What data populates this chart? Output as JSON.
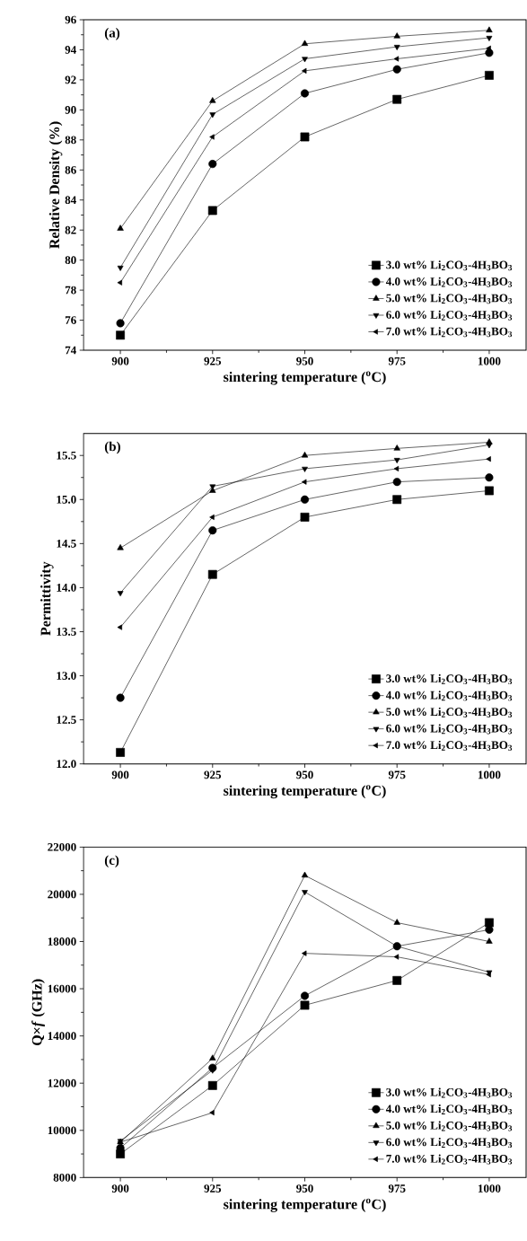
{
  "chart_data": [
    {
      "type": "line",
      "annotations": [
        "(a)"
      ],
      "xlabel": "sintering temperature ($^{o}$C)",
      "ylabel": "Relative Density (%)",
      "x": [
        900,
        925,
        950,
        975,
        1000
      ],
      "xlim": [
        890,
        1010
      ],
      "xticks": [
        900,
        925,
        950,
        975,
        1000
      ],
      "ylim": [
        74,
        96
      ],
      "yticks": [
        74,
        76,
        78,
        80,
        82,
        84,
        86,
        88,
        90,
        92,
        94,
        96
      ],
      "legend": "bottom right",
      "line_style": "solid",
      "series": [
        {
          "name": "3.0 wt% Li$_{2}$CO$_{3}$-4H$_{3}$BO$_{3}$",
          "color": "#000000",
          "marker": "square",
          "values": [
            75.0,
            83.3,
            88.2,
            90.7,
            92.3
          ]
        },
        {
          "name": "4.0 wt% Li$_{2}$CO$_{3}$-4H$_{3}$BO$_{3}$",
          "color": "#000000",
          "marker": "circle",
          "values": [
            75.8,
            86.4,
            91.1,
            92.7,
            93.8
          ]
        },
        {
          "name": "5.0 wt% Li$_{2}$CO$_{3}$-4H$_{3}$BO$_{3}$",
          "color": "#000000",
          "marker": "triangle",
          "values": [
            82.1,
            90.6,
            94.4,
            94.9,
            95.3
          ]
        },
        {
          "name": "6.0 wt% Li$_{2}$CO$_{3}$-4H$_{3}$BO$_{3}$",
          "color": "#000000",
          "marker": "triangle-down",
          "values": [
            79.5,
            89.7,
            93.4,
            94.2,
            94.8
          ]
        },
        {
          "name": "7.0 wt% Li$_{2}$CO$_{3}$-4H$_{3}$BO$_{3}$",
          "color": "#000000",
          "marker": "triangle-left",
          "values": [
            78.5,
            88.2,
            92.6,
            93.4,
            94.1
          ]
        }
      ]
    },
    {
      "type": "line",
      "annotations": [
        "(b)"
      ],
      "xlabel": "sintering temperature ($^{o}$C)",
      "ylabel": "Permittivity",
      "x": [
        900,
        925,
        950,
        975,
        1000
      ],
      "xlim": [
        890,
        1010
      ],
      "xticks": [
        900,
        925,
        950,
        975,
        1000
      ],
      "ylim": [
        12.0,
        15.75
      ],
      "yticks": [
        {
          "value": 12.0,
          "label": "12.0"
        },
        12.5,
        {
          "value": 13.0,
          "label": "13.0"
        },
        13.5,
        {
          "value": 14.0,
          "label": "14.0"
        },
        14.5,
        {
          "value": 15.0,
          "label": "15.0"
        },
        15.5
      ],
      "legend": "bottom right",
      "line_style": "solid",
      "series": [
        {
          "name": "3.0 wt% Li$_{2}$CO$_{3}$-4H$_{3}$BO$_{3}$",
          "color": "#000000",
          "marker": "square",
          "values": [
            12.13,
            14.15,
            14.8,
            15.0,
            15.1
          ]
        },
        {
          "name": "4.0 wt% Li$_{2}$CO$_{3}$-4H$_{3}$BO$_{3}$",
          "color": "#000000",
          "marker": "circle",
          "values": [
            12.75,
            14.65,
            15.0,
            15.2,
            15.25
          ]
        },
        {
          "name": "5.0 wt% Li$_{2}$CO$_{3}$-4H$_{3}$BO$_{3}$",
          "color": "#000000",
          "marker": "triangle",
          "values": [
            14.45,
            15.1,
            15.5,
            15.58,
            15.65
          ]
        },
        {
          "name": "6.0 wt% Li$_{2}$CO$_{3}$-4H$_{3}$BO$_{3}$",
          "color": "#000000",
          "marker": "triangle-down",
          "values": [
            13.94,
            15.15,
            15.35,
            15.45,
            15.62
          ]
        },
        {
          "name": "7.0 wt% Li$_{2}$CO$_{3}$-4H$_{3}$BO$_{3}$",
          "color": "#000000",
          "marker": "triangle-left",
          "values": [
            13.55,
            14.8,
            15.2,
            15.35,
            15.46
          ]
        }
      ]
    },
    {
      "type": "line",
      "annotations": [
        "(c)"
      ],
      "xlabel": "sintering temperature ($^{o}$C)",
      "ylabel": "Q×*f* (GHz)",
      "x": [
        900,
        925,
        950,
        975,
        1000
      ],
      "xlim": [
        890,
        1010
      ],
      "xticks": [
        900,
        925,
        950,
        975,
        1000
      ],
      "ylim": [
        8000,
        22000
      ],
      "yticks": [
        8000,
        10000,
        12000,
        14000,
        16000,
        18000,
        20000,
        22000
      ],
      "legend": "bottom right",
      "line_style": "solid",
      "series": [
        {
          "name": "3.0 wt% Li$_{2}$CO$_{3}$-4H$_{3}$BO$_{3}$",
          "color": "#000000",
          "marker": "square",
          "values": [
            9000,
            11900,
            15300,
            16350,
            18800
          ]
        },
        {
          "name": "4.0 wt% Li$_{2}$CO$_{3}$-4H$_{3}$BO$_{3}$",
          "color": "#000000",
          "marker": "circle",
          "values": [
            9250,
            12650,
            15700,
            17800,
            18500
          ]
        },
        {
          "name": "5.0 wt% Li$_{2}$CO$_{3}$-4H$_{3}$BO$_{3}$",
          "color": "#000000",
          "marker": "triangle",
          "values": [
            9500,
            13050,
            20800,
            18800,
            18000
          ]
        },
        {
          "name": "6.0 wt% Li$_{2}$CO$_{3}$-4H$_{3}$BO$_{3}$",
          "color": "#000000",
          "marker": "triangle-down",
          "values": [
            9550,
            12550,
            20100,
            17800,
            16700
          ]
        },
        {
          "name": "7.0 wt% Li$_{2}$CO$_{3}$-4H$_{3}$BO$_{3}$",
          "color": "#000000",
          "marker": "triangle-left",
          "values": [
            9500,
            10750,
            17500,
            17350,
            16600
          ]
        }
      ]
    }
  ]
}
